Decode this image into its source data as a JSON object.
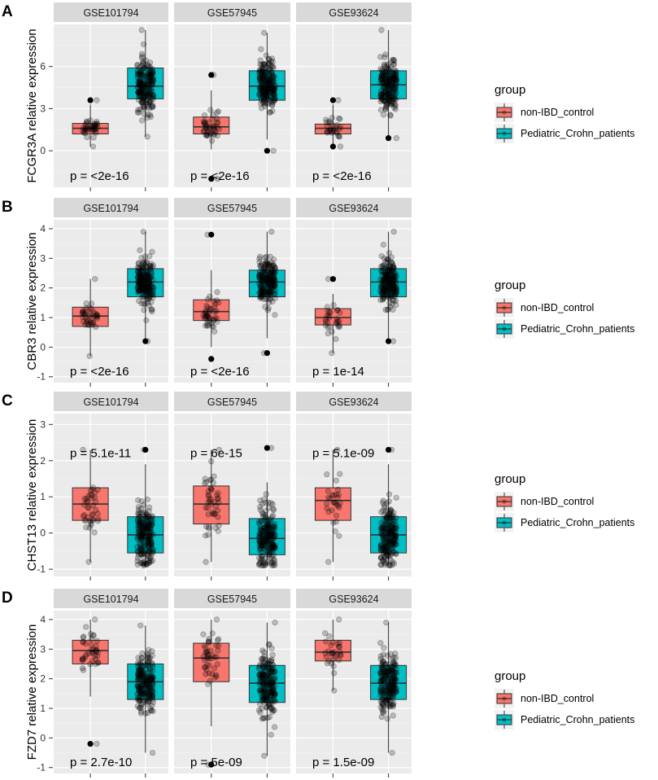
{
  "legend": {
    "title": "group",
    "entries": [
      {
        "label": "non-IBD_control",
        "color": "#F8766D"
      },
      {
        "label": "Pediatric_Crohn_patients",
        "color": "#00BFC4"
      }
    ]
  },
  "chart_data": [
    {
      "type": "boxplot",
      "panel_label": "A",
      "ylabel": "FCGR3A relative expression",
      "ylim": [
        -2.6,
        9.0
      ],
      "yticks": [
        0,
        3,
        6
      ],
      "group_order": [
        "non-IBD_control",
        "Pediatric_Crohn_patients"
      ],
      "facets": [
        {
          "title": "GSE101794",
          "p_value": "p = <2e-16",
          "boxes": [
            {
              "group": "non-IBD_control",
              "q1": 1.2,
              "median": 1.6,
              "q3": 1.95,
              "whisker_low": 0.3,
              "whisker_high": 3.3,
              "point_min": 0.3,
              "point_max": 3.6,
              "n": 40
            },
            {
              "group": "Pediatric_Crohn_patients",
              "q1": 3.7,
              "median": 4.6,
              "q3": 5.9,
              "whisker_low": 1.0,
              "whisker_high": 8.6,
              "point_min": 1.0,
              "point_max": 8.6,
              "n": 200
            }
          ]
        },
        {
          "title": "GSE57945",
          "p_value": "p = <2e-16",
          "boxes": [
            {
              "group": "non-IBD_control",
              "q1": 1.2,
              "median": 1.7,
              "q3": 2.4,
              "whisker_low": 0.1,
              "whisker_high": 4.3,
              "point_min": -2.0,
              "point_max": 5.4,
              "n": 45
            },
            {
              "group": "Pediatric_Crohn_patients",
              "q1": 3.6,
              "median": 4.6,
              "q3": 5.7,
              "whisker_low": 0.8,
              "whisker_high": 8.4,
              "point_min": 0.0,
              "point_max": 8.4,
              "n": 200
            }
          ]
        },
        {
          "title": "GSE93624",
          "p_value": "p = <2e-16",
          "boxes": [
            {
              "group": "non-IBD_control",
              "q1": 1.2,
              "median": 1.6,
              "q3": 1.9,
              "whisker_low": 0.4,
              "whisker_high": 3.3,
              "point_min": 0.3,
              "point_max": 3.6,
              "n": 30
            },
            {
              "group": "Pediatric_Crohn_patients",
              "q1": 3.7,
              "median": 4.7,
              "q3": 5.7,
              "whisker_low": 1.0,
              "whisker_high": 8.6,
              "point_min": 0.9,
              "point_max": 8.6,
              "n": 200
            }
          ]
        }
      ]
    },
    {
      "type": "boxplot",
      "panel_label": "B",
      "ylabel": "CBR3 relative expression",
      "ylim": [
        -1.2,
        4.3
      ],
      "yticks": [
        -1,
        0,
        1,
        2,
        3,
        4
      ],
      "group_order": [
        "non-IBD_control",
        "Pediatric_Crohn_patients"
      ],
      "facets": [
        {
          "title": "GSE101794",
          "p_value": "p = <2e-16",
          "boxes": [
            {
              "group": "non-IBD_control",
              "q1": 0.7,
              "median": 1.05,
              "q3": 1.35,
              "whisker_low": -0.3,
              "whisker_high": 2.3,
              "point_min": -0.3,
              "point_max": 2.3,
              "n": 40
            },
            {
              "group": "Pediatric_Crohn_patients",
              "q1": 1.7,
              "median": 2.2,
              "q3": 2.65,
              "whisker_low": 0.3,
              "whisker_high": 3.9,
              "point_min": 0.2,
              "point_max": 3.9,
              "n": 200
            }
          ]
        },
        {
          "title": "GSE57945",
          "p_value": "p = <2e-16",
          "boxes": [
            {
              "group": "non-IBD_control",
              "q1": 0.9,
              "median": 1.2,
              "q3": 1.6,
              "whisker_low": 0.0,
              "whisker_high": 2.6,
              "point_min": -0.4,
              "point_max": 3.8,
              "n": 45
            },
            {
              "group": "Pediatric_Crohn_patients",
              "q1": 1.7,
              "median": 2.2,
              "q3": 2.6,
              "whisker_low": 0.3,
              "whisker_high": 3.9,
              "point_min": -0.2,
              "point_max": 3.9,
              "n": 200
            }
          ]
        },
        {
          "title": "GSE93624",
          "p_value": "p = 1e-14",
          "boxes": [
            {
              "group": "non-IBD_control",
              "q1": 0.75,
              "median": 1.0,
              "q3": 1.3,
              "whisker_low": -0.2,
              "whisker_high": 1.8,
              "point_min": -0.2,
              "point_max": 2.3,
              "n": 30
            },
            {
              "group": "Pediatric_Crohn_patients",
              "q1": 1.7,
              "median": 2.2,
              "q3": 2.65,
              "whisker_low": 0.3,
              "whisker_high": 3.9,
              "point_min": 0.2,
              "point_max": 3.9,
              "n": 200
            }
          ]
        }
      ]
    },
    {
      "type": "boxplot",
      "panel_label": "C",
      "ylabel": "CHST13 relative expression",
      "ylim": [
        -1.2,
        3.3
      ],
      "yticks": [
        -1,
        0,
        1,
        2,
        3
      ],
      "group_order": [
        "non-IBD_control",
        "Pediatric_Crohn_patients"
      ],
      "facets": [
        {
          "title": "GSE101794",
          "p_value": "p = 5.1e-11",
          "boxes": [
            {
              "group": "non-IBD_control",
              "q1": 0.35,
              "median": 0.8,
              "q3": 1.25,
              "whisker_low": -0.8,
              "whisker_high": 2.3,
              "point_min": -0.8,
              "point_max": 2.3,
              "n": 40
            },
            {
              "group": "Pediatric_Crohn_patients",
              "q1": -0.55,
              "median": -0.05,
              "q3": 0.45,
              "whisker_low": -0.9,
              "whisker_high": 1.9,
              "point_min": -0.9,
              "point_max": 2.3,
              "n": 200
            }
          ]
        },
        {
          "title": "GSE57945",
          "p_value": "p = 6e-15",
          "boxes": [
            {
              "group": "non-IBD_control",
              "q1": 0.25,
              "median": 0.8,
              "q3": 1.3,
              "whisker_low": -0.8,
              "whisker_high": 2.3,
              "point_min": -0.8,
              "point_max": 2.3,
              "n": 45
            },
            {
              "group": "Pediatric_Crohn_patients",
              "q1": -0.6,
              "median": -0.15,
              "q3": 0.4,
              "whisker_low": -0.9,
              "whisker_high": 1.4,
              "point_min": -0.9,
              "point_max": 2.35,
              "n": 200
            }
          ]
        },
        {
          "title": "GSE93624",
          "p_value": "p = 5.1e-09",
          "boxes": [
            {
              "group": "non-IBD_control",
              "q1": 0.35,
              "median": 0.9,
              "q3": 1.25,
              "whisker_low": -0.8,
              "whisker_high": 2.3,
              "point_min": -0.8,
              "point_max": 2.3,
              "n": 30
            },
            {
              "group": "Pediatric_Crohn_patients",
              "q1": -0.55,
              "median": -0.05,
              "q3": 0.45,
              "whisker_low": -0.9,
              "whisker_high": 1.9,
              "point_min": -0.9,
              "point_max": 2.3,
              "n": 200
            }
          ]
        }
      ]
    },
    {
      "type": "boxplot",
      "panel_label": "D",
      "ylabel": "FZD7 relative expression",
      "ylim": [
        -1.2,
        4.3
      ],
      "yticks": [
        -1,
        0,
        1,
        2,
        3,
        4
      ],
      "group_order": [
        "non-IBD_control",
        "Pediatric_Crohn_patients"
      ],
      "facets": [
        {
          "title": "GSE101794",
          "p_value": "p = 2.7e-10",
          "boxes": [
            {
              "group": "non-IBD_control",
              "q1": 2.5,
              "median": 2.95,
              "q3": 3.3,
              "whisker_low": 1.4,
              "whisker_high": 4.0,
              "point_min": -0.2,
              "point_max": 4.0,
              "n": 40
            },
            {
              "group": "Pediatric_Crohn_patients",
              "q1": 1.3,
              "median": 1.9,
              "q3": 2.5,
              "whisker_low": -0.5,
              "whisker_high": 3.8,
              "point_min": -0.5,
              "point_max": 3.8,
              "n": 200
            }
          ]
        },
        {
          "title": "GSE57945",
          "p_value": "p = 5e-09",
          "boxes": [
            {
              "group": "non-IBD_control",
              "q1": 1.9,
              "median": 2.7,
              "q3": 3.2,
              "whisker_low": 0.4,
              "whisker_high": 4.0,
              "point_min": -0.9,
              "point_max": 4.0,
              "n": 45
            },
            {
              "group": "Pediatric_Crohn_patients",
              "q1": 1.2,
              "median": 1.85,
              "q3": 2.45,
              "whisker_low": -0.6,
              "whisker_high": 3.9,
              "point_min": -0.6,
              "point_max": 3.9,
              "n": 200
            }
          ]
        },
        {
          "title": "GSE93624",
          "p_value": "p = 1.5e-09",
          "boxes": [
            {
              "group": "non-IBD_control",
              "q1": 2.6,
              "median": 2.9,
              "q3": 3.3,
              "whisker_low": 1.6,
              "whisker_high": 4.0,
              "point_min": 1.6,
              "point_max": 4.0,
              "n": 30
            },
            {
              "group": "Pediatric_Crohn_patients",
              "q1": 1.3,
              "median": 1.85,
              "q3": 2.45,
              "whisker_low": -0.5,
              "whisker_high": 3.9,
              "point_min": -0.5,
              "point_max": 3.9,
              "n": 200
            }
          ]
        }
      ]
    }
  ]
}
